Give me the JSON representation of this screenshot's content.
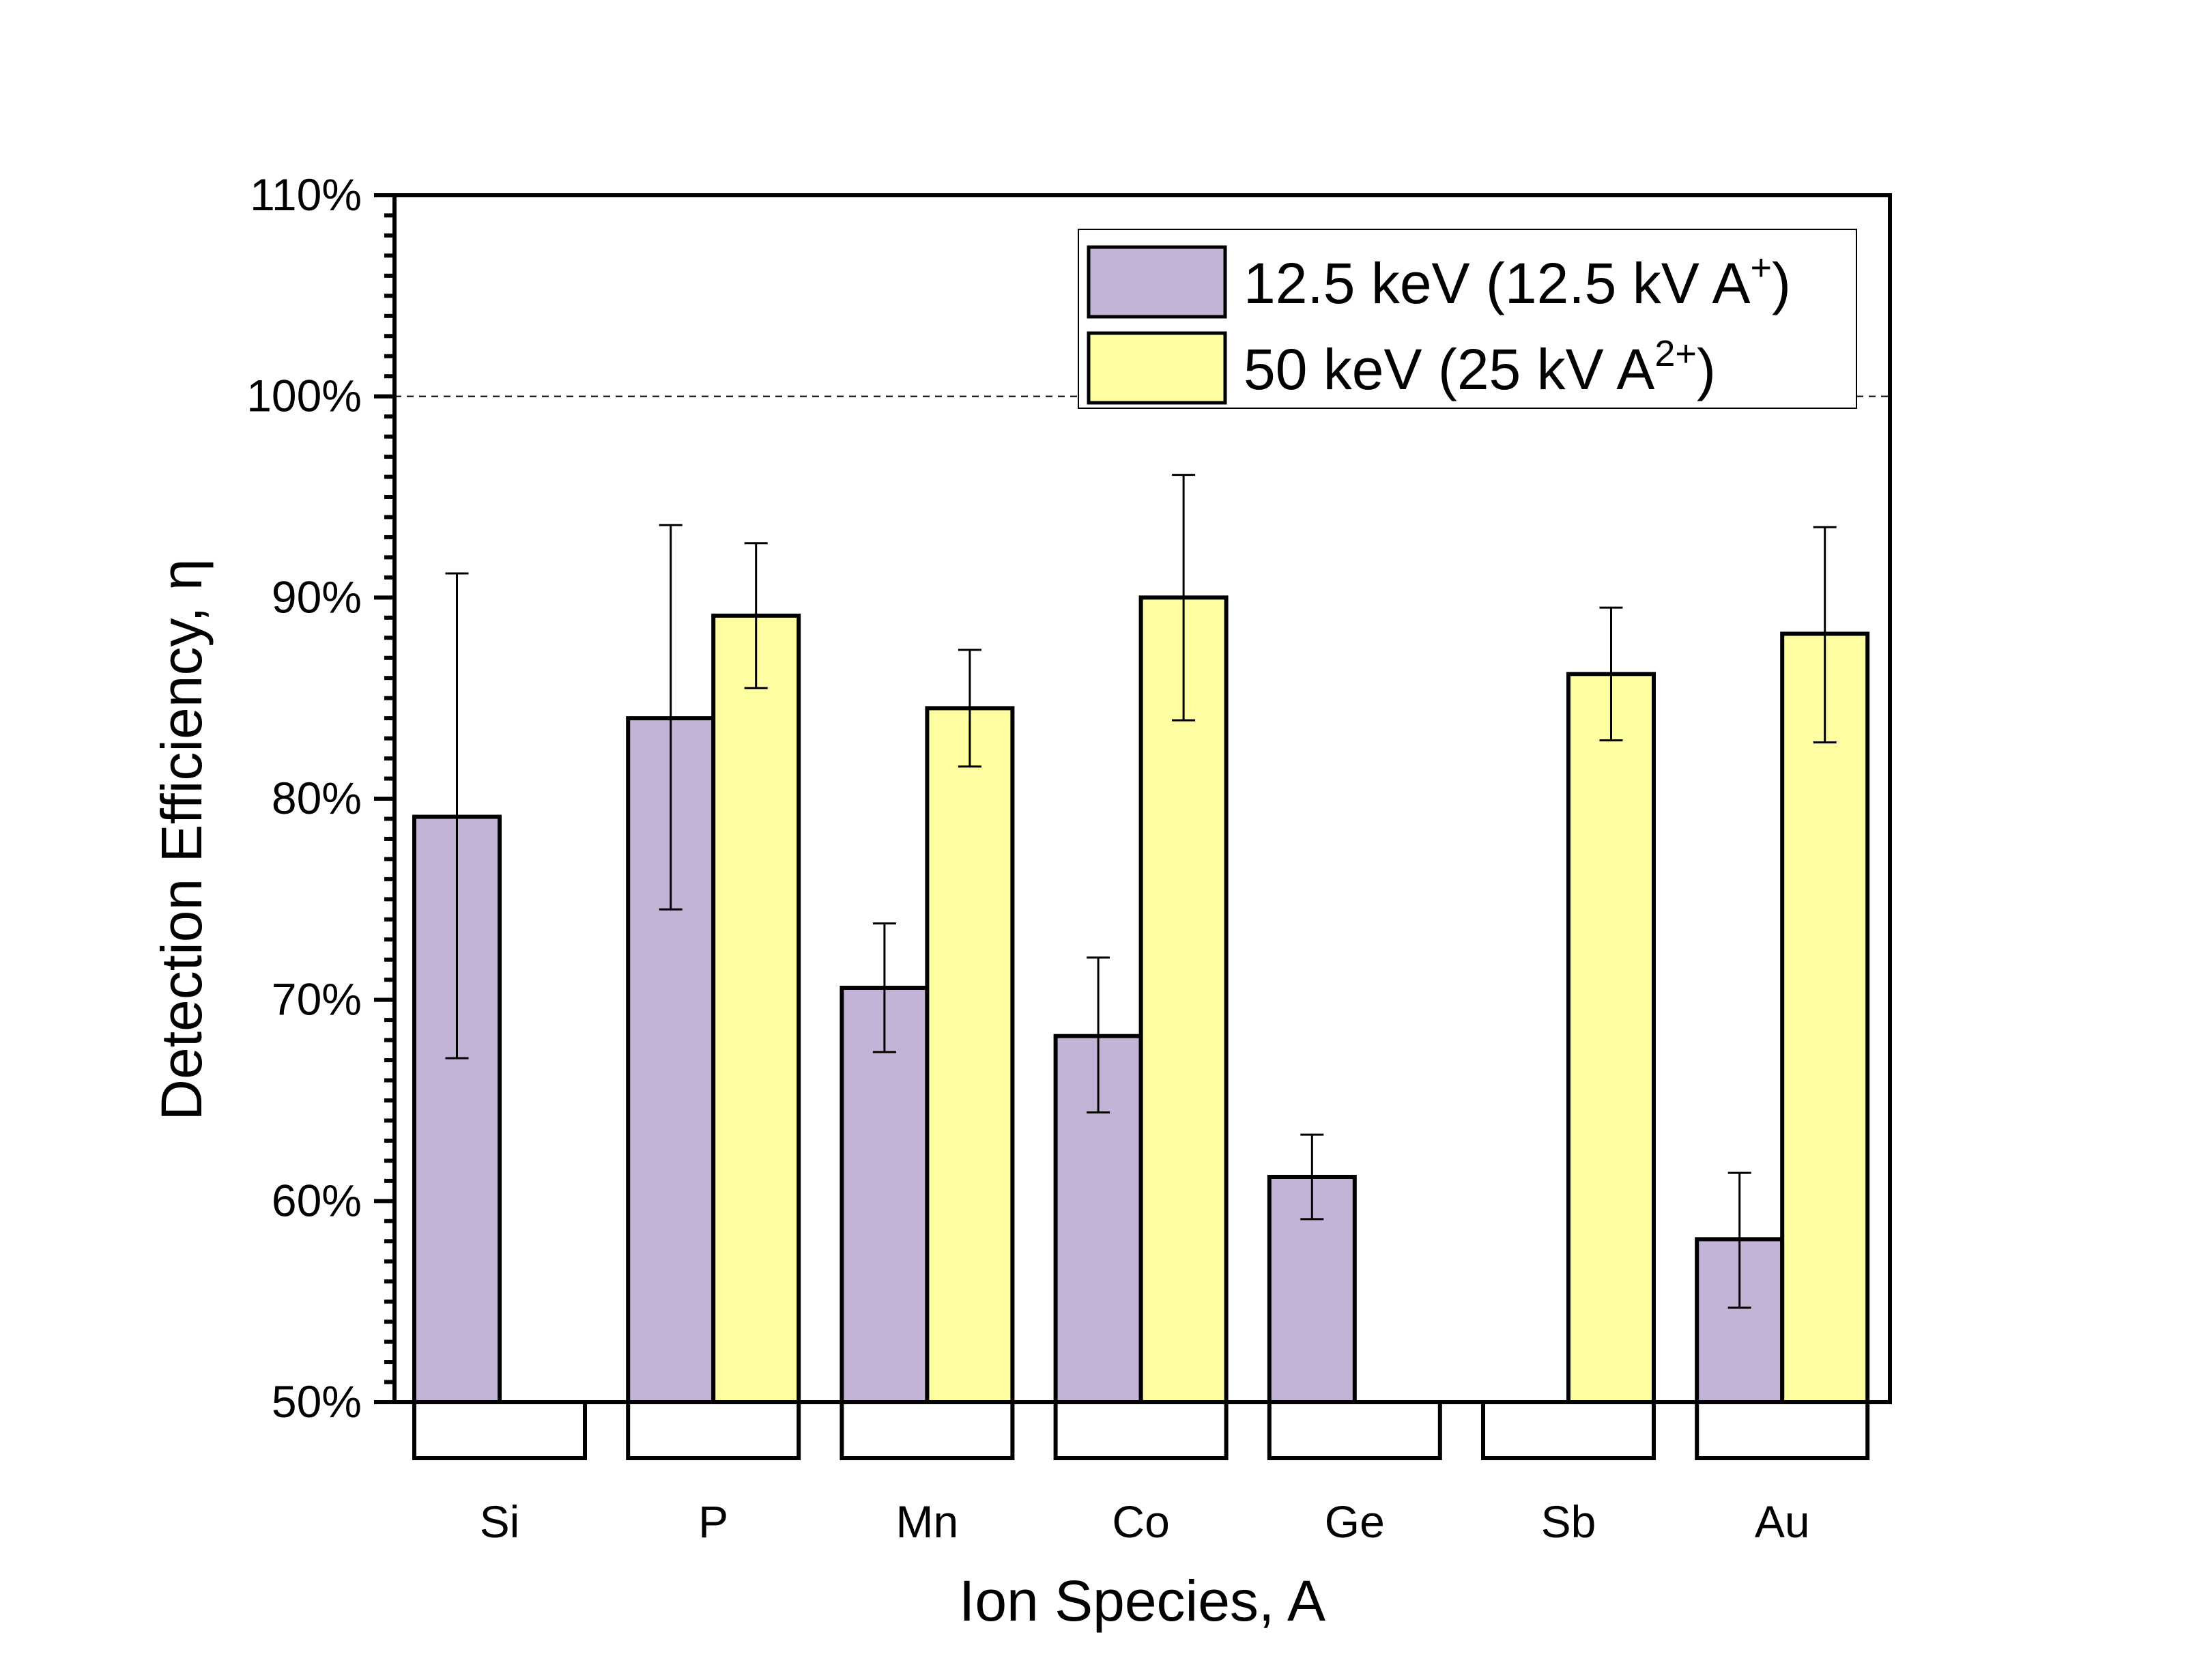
{
  "chart_data": {
    "type": "bar",
    "title": "",
    "xlabel": "Ion Species, A",
    "ylabel": "Detection Efficiency, η",
    "ylim": [
      50,
      110
    ],
    "y_unit": "%",
    "y_major_ticks": [
      50,
      60,
      70,
      80,
      90,
      100,
      110
    ],
    "y_tick_labels": [
      "50%",
      "60%",
      "70%",
      "80%",
      "90%",
      "100%",
      "110%"
    ],
    "y_minor_step": 1,
    "reference_line": {
      "value": 100,
      "style": "dashed"
    },
    "grid": false,
    "legend_position": "top-right",
    "categories": [
      "Si",
      "P",
      "Mn",
      "Co",
      "Ge",
      "Sb",
      "Au"
    ],
    "series": [
      {
        "name": "12.5 keV (12.5 kV A+)",
        "label_main": "12.5 keV (12.5 kV A",
        "label_sup": "+",
        "label_tail": ")",
        "color": "#c3b3d6",
        "values": [
          79.1,
          84.0,
          70.6,
          68.2,
          61.2,
          null,
          58.1
        ],
        "err_upper": [
          91.2,
          93.6,
          73.8,
          72.1,
          63.3,
          null,
          61.4
        ],
        "err_lower": [
          67.1,
          74.5,
          67.4,
          64.4,
          59.1,
          null,
          54.7
        ]
      },
      {
        "name": "50 keV (25 kV A2+)",
        "label_main": "50 keV (25 kV A",
        "label_sup": "2+",
        "label_tail": ")",
        "color": "#fefda1",
        "values": [
          null,
          89.1,
          84.5,
          90.0,
          null,
          86.2,
          88.2
        ],
        "err_upper": [
          null,
          92.7,
          87.4,
          96.1,
          null,
          89.5,
          93.5
        ],
        "err_lower": [
          null,
          85.5,
          81.6,
          83.9,
          null,
          82.9,
          82.8
        ]
      }
    ]
  }
}
